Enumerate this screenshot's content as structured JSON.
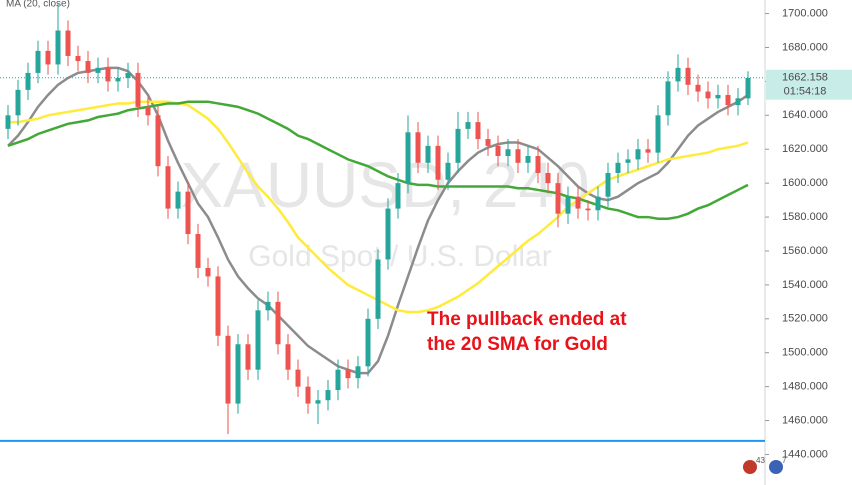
{
  "chart_data": {
    "type": "candlestick",
    "title": "XAUUSD, 240",
    "subtitle": "Gold Spot / U.S. Dollar",
    "indicator": "MA (20, close)",
    "annotation": [
      "The pullback ended at",
      "the 20 SMA for Gold"
    ],
    "last_price": 1662.158,
    "countdown": "01:54:18",
    "badges": [
      "43",
      "7"
    ],
    "ylim": [
      1422,
      1708
    ],
    "yticks": [
      {
        "value": 1440,
        "label": "1440.000"
      },
      {
        "value": 1460,
        "label": "1460.000"
      },
      {
        "value": 1480,
        "label": "1480.000"
      },
      {
        "value": 1500,
        "label": "1500.000"
      },
      {
        "value": 1520,
        "label": "1520.000"
      },
      {
        "value": 1540,
        "label": "1540.000"
      },
      {
        "value": 1560,
        "label": "1560.000"
      },
      {
        "value": 1580,
        "label": "1580.000"
      },
      {
        "value": 1600,
        "label": "1600.000"
      },
      {
        "value": 1620,
        "label": "1620.000"
      },
      {
        "value": 1640,
        "label": "1640.000"
      },
      {
        "value": 1660,
        "label": "1660.000"
      },
      {
        "value": 1680,
        "label": "1680.000"
      },
      {
        "value": 1700,
        "label": "1700.000"
      }
    ],
    "up_color": "#26a69a",
    "down_color": "#ef5350",
    "support": {
      "value": 1448,
      "color": "#2196f3"
    },
    "candles": {
      "open": [
        1632,
        1640,
        1655,
        1665,
        1678,
        1670,
        1690,
        1675,
        1672,
        1665,
        1668,
        1660,
        1662,
        1665,
        1645,
        1640,
        1610,
        1585,
        1595,
        1570,
        1550,
        1545,
        1510,
        1470,
        1505,
        1490,
        1525,
        1530,
        1505,
        1490,
        1480,
        1470,
        1472,
        1478,
        1490,
        1485,
        1492,
        1520,
        1555,
        1585,
        1600,
        1630,
        1612,
        1622,
        1602,
        1612,
        1632,
        1636,
        1626,
        1622,
        1616,
        1620,
        1612,
        1616,
        1606,
        1600,
        1582,
        1592,
        1585,
        1584,
        1592,
        1606,
        1612,
        1614,
        1620,
        1618,
        1640,
        1660,
        1668,
        1658,
        1654,
        1650,
        1652,
        1646,
        1650
      ],
      "high": [
        1646,
        1661,
        1671,
        1684,
        1684,
        1706,
        1696,
        1681,
        1678,
        1674,
        1674,
        1668,
        1671,
        1671,
        1651,
        1646,
        1616,
        1601,
        1601,
        1576,
        1556,
        1551,
        1516,
        1511,
        1511,
        1531,
        1536,
        1536,
        1511,
        1496,
        1486,
        1478,
        1484,
        1496,
        1496,
        1498,
        1526,
        1561,
        1591,
        1606,
        1640,
        1636,
        1628,
        1628,
        1618,
        1642,
        1642,
        1642,
        1632,
        1628,
        1626,
        1626,
        1622,
        1622,
        1612,
        1606,
        1598,
        1598,
        1590,
        1598,
        1612,
        1618,
        1620,
        1626,
        1626,
        1646,
        1666,
        1676,
        1674,
        1664,
        1660,
        1658,
        1658,
        1656,
        1666
      ],
      "low": [
        1626,
        1634,
        1649,
        1659,
        1664,
        1664,
        1669,
        1666,
        1659,
        1659,
        1654,
        1654,
        1656,
        1639,
        1634,
        1604,
        1579,
        1579,
        1564,
        1544,
        1539,
        1504,
        1452,
        1464,
        1484,
        1484,
        1519,
        1499,
        1484,
        1474,
        1464,
        1458,
        1466,
        1472,
        1479,
        1479,
        1486,
        1514,
        1549,
        1579,
        1594,
        1606,
        1606,
        1596,
        1596,
        1606,
        1626,
        1620,
        1616,
        1610,
        1610,
        1606,
        1606,
        1600,
        1594,
        1574,
        1576,
        1579,
        1578,
        1578,
        1586,
        1600,
        1606,
        1608,
        1612,
        1612,
        1634,
        1654,
        1652,
        1648,
        1644,
        1644,
        1640,
        1640,
        1646
      ],
      "close": [
        1640,
        1655,
        1665,
        1678,
        1670,
        1690,
        1675,
        1672,
        1665,
        1668,
        1660,
        1662,
        1665,
        1645,
        1640,
        1610,
        1585,
        1595,
        1570,
        1550,
        1545,
        1510,
        1470,
        1505,
        1490,
        1525,
        1530,
        1505,
        1490,
        1480,
        1470,
        1472,
        1478,
        1490,
        1485,
        1492,
        1520,
        1555,
        1585,
        1600,
        1630,
        1612,
        1622,
        1602,
        1612,
        1632,
        1636,
        1626,
        1622,
        1616,
        1620,
        1612,
        1616,
        1606,
        1600,
        1582,
        1592,
        1585,
        1584,
        1592,
        1606,
        1612,
        1614,
        1620,
        1618,
        1640,
        1660,
        1668,
        1658,
        1654,
        1650,
        1652,
        1646,
        1650,
        1662
      ]
    },
    "lines": [
      {
        "color": "#8c8c8c",
        "values": [
          1622,
          1628,
          1636,
          1645,
          1652,
          1658,
          1662,
          1665,
          1666,
          1667,
          1668,
          1668,
          1666,
          1660,
          1652,
          1640,
          1625,
          1612,
          1600,
          1588,
          1580,
          1568,
          1555,
          1545,
          1538,
          1532,
          1528,
          1522,
          1516,
          1510,
          1504,
          1500,
          1496,
          1492,
          1490,
          1488,
          1488,
          1495,
          1510,
          1528,
          1545,
          1562,
          1578,
          1590,
          1600,
          1607,
          1613,
          1618,
          1621,
          1623,
          1624,
          1624,
          1622,
          1620,
          1615,
          1610,
          1604,
          1598,
          1594,
          1591,
          1590,
          1592,
          1596,
          1600,
          1603,
          1606,
          1612,
          1620,
          1628,
          1634,
          1638,
          1642,
          1645,
          1648,
          1652
        ]
      },
      {
        "color": "#ffeb3b",
        "values": [
          1636,
          1636,
          1637,
          1638,
          1640,
          1641,
          1642,
          1643,
          1644,
          1645,
          1646,
          1647,
          1647,
          1648,
          1648,
          1648,
          1648,
          1647,
          1646,
          1642,
          1638,
          1632,
          1624,
          1615,
          1606,
          1598,
          1592,
          1585,
          1577,
          1568,
          1562,
          1556,
          1550,
          1545,
          1540,
          1537,
          1534,
          1531,
          1528,
          1525,
          1524,
          1524,
          1525,
          1527,
          1530,
          1533,
          1537,
          1541,
          1546,
          1551,
          1556,
          1561,
          1566,
          1570,
          1575,
          1580,
          1586,
          1590,
          1594,
          1598,
          1602,
          1604,
          1606,
          1608,
          1610,
          1612,
          1614,
          1615,
          1616,
          1617,
          1618,
          1620,
          1621,
          1622,
          1624
        ]
      },
      {
        "color": "#43a838",
        "values": [
          1622,
          1624,
          1626,
          1629,
          1631,
          1633,
          1635,
          1636,
          1637,
          1639,
          1640,
          1641,
          1643,
          1644,
          1645,
          1646,
          1647,
          1647,
          1648,
          1648,
          1648,
          1647,
          1646,
          1645,
          1643,
          1641,
          1638,
          1635,
          1632,
          1628,
          1626,
          1623,
          1620,
          1617,
          1614,
          1612,
          1610,
          1607,
          1604,
          1602,
          1600,
          1599,
          1599,
          1598,
          1598,
          1598,
          1598,
          1598,
          1598,
          1598,
          1598,
          1597,
          1597,
          1596,
          1595,
          1594,
          1592,
          1591,
          1589,
          1587,
          1585,
          1584,
          1582,
          1580,
          1580,
          1579,
          1579,
          1580,
          1582,
          1585,
          1587,
          1590,
          1593,
          1596,
          1599
        ]
      }
    ]
  }
}
